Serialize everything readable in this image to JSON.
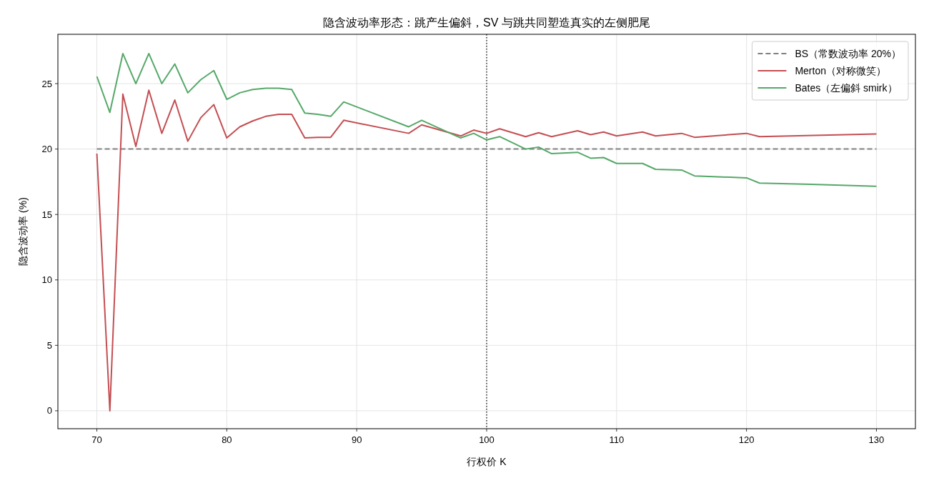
{
  "chart_data": {
    "type": "line",
    "title": "隐含波动率形态：跳产生偏斜，SV 与跳共同塑造真实的左侧肥尾",
    "xlabel": "行权价 K",
    "ylabel": "隐含波动率 (%)",
    "xlim": [
      67,
      133
    ],
    "ylim": [
      -1.37,
      28.77
    ],
    "xticks": [
      70,
      80,
      90,
      100,
      110,
      120,
      130
    ],
    "yticks": [
      0,
      5,
      10,
      15,
      20,
      25
    ],
    "grid": true,
    "legend": "top right",
    "marker": "none",
    "ref_lines": [
      {
        "axis": "x",
        "value": 100,
        "color": "#000000",
        "line_style": "dotted"
      }
    ],
    "series": [
      {
        "name": "BS（常数波动率 20%）",
        "color": "#7f7f7f",
        "line_style": "dashed",
        "x": [
          70,
          130
        ],
        "values": [
          20,
          20
        ]
      },
      {
        "name": "Merton（对称微笑）",
        "color": "#c44e52",
        "line_style": "solid",
        "x": [
          70,
          71,
          72,
          73,
          74,
          75,
          76,
          77,
          78,
          79,
          80,
          81,
          82,
          83,
          84,
          85,
          86,
          87,
          88,
          89,
          94,
          95,
          98,
          99,
          100,
          101,
          103,
          104,
          105,
          107,
          108,
          109,
          110,
          111,
          112,
          113,
          115,
          116,
          120,
          121,
          130
        ],
        "values": [
          19.65,
          0,
          24.2,
          20.2,
          24.5,
          21.2,
          23.75,
          20.6,
          22.4,
          23.4,
          20.85,
          21.7,
          22.15,
          22.5,
          22.65,
          22.65,
          20.85,
          20.9,
          20.9,
          22.2,
          21.2,
          21.85,
          21.0,
          21.45,
          21.2,
          21.55,
          20.95,
          21.25,
          20.95,
          21.4,
          21.1,
          21.3,
          21.0,
          21.15,
          21.3,
          21.0,
          21.2,
          20.9,
          21.2,
          20.95,
          21.15
        ]
      },
      {
        "name": "Bates（左偏斜 smirk）",
        "color": "#55a868",
        "line_style": "solid",
        "x": [
          70,
          71,
          72,
          73,
          74,
          75,
          76,
          77,
          78,
          79,
          80,
          81,
          82,
          83,
          84,
          85,
          86,
          87,
          88,
          89,
          94,
          95,
          98,
          99,
          100,
          101,
          103,
          104,
          105,
          107,
          108,
          109,
          110,
          112,
          113,
          115,
          116,
          120,
          121,
          125,
          130
        ],
        "values": [
          25.55,
          22.8,
          27.3,
          25.0,
          27.3,
          25.0,
          26.5,
          24.3,
          25.3,
          26.0,
          23.8,
          24.3,
          24.55,
          24.65,
          24.65,
          24.55,
          22.75,
          22.65,
          22.5,
          23.6,
          21.7,
          22.2,
          20.85,
          21.2,
          20.7,
          20.95,
          20.0,
          20.15,
          19.65,
          19.75,
          19.3,
          19.35,
          18.9,
          18.9,
          18.45,
          18.4,
          17.95,
          17.8,
          17.4,
          17.3,
          17.15
        ]
      }
    ]
  }
}
